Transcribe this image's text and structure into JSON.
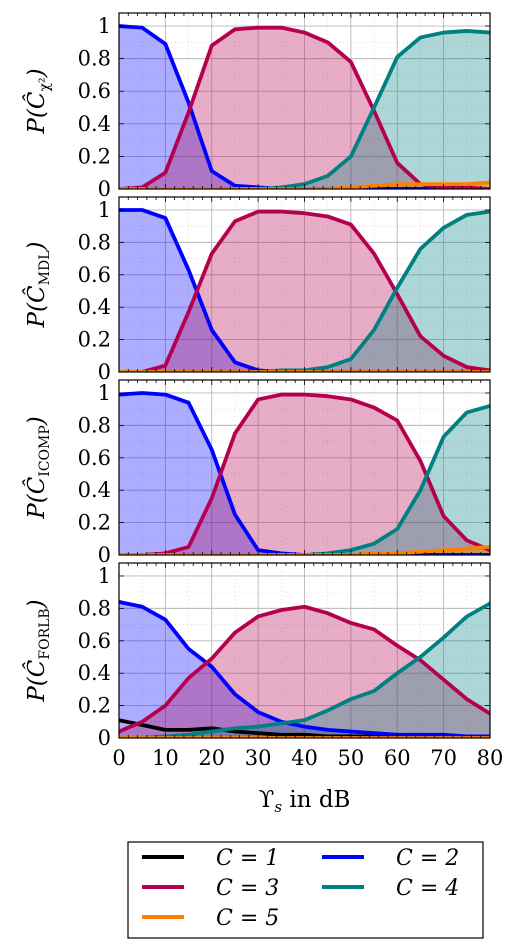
{
  "chart_data": [
    {
      "type": "area",
      "ylabel": "P(Ĉχ²)",
      "ylabel_main": "P(Ĉ",
      "ylabel_sub": "χ²",
      "xlim": [
        0,
        80
      ],
      "ylim": [
        0,
        1.08
      ],
      "grid": true,
      "x": [
        0,
        5,
        10,
        15,
        20,
        25,
        30,
        35,
        40,
        45,
        50,
        55,
        60,
        65,
        70,
        75,
        80
      ],
      "series": [
        {
          "name": "C = 1",
          "values": [
            0,
            0,
            0,
            0,
            0,
            0,
            0,
            0,
            0,
            0,
            0,
            0,
            0,
            0,
            0,
            0,
            0
          ]
        },
        {
          "name": "C = 2",
          "values": [
            1.0,
            0.99,
            0.89,
            0.53,
            0.11,
            0.02,
            0.01,
            0.0,
            0.0,
            0.0,
            0.0,
            0.0,
            0.0,
            0.0,
            0.0,
            0.0,
            0.0
          ]
        },
        {
          "name": "C = 3",
          "values": [
            0.0,
            0.01,
            0.1,
            0.47,
            0.88,
            0.98,
            0.99,
            0.99,
            0.96,
            0.9,
            0.78,
            0.48,
            0.16,
            0.03,
            0.01,
            0.01,
            0.0
          ]
        },
        {
          "name": "C = 4",
          "values": [
            0.0,
            0.0,
            0.0,
            0.0,
            0.0,
            0.0,
            0.0,
            0.01,
            0.03,
            0.08,
            0.2,
            0.5,
            0.81,
            0.93,
            0.96,
            0.97,
            0.96
          ]
        },
        {
          "name": "C = 5",
          "values": [
            0.0,
            0.0,
            0.0,
            0.0,
            0.0,
            0.0,
            0.0,
            0.0,
            0.0,
            0.0,
            0.01,
            0.02,
            0.03,
            0.03,
            0.03,
            0.03,
            0.04
          ]
        }
      ]
    },
    {
      "type": "area",
      "ylabel": "P(ĈMDL)",
      "ylabel_main": "P(Ĉ",
      "ylabel_sub": "MDL",
      "xlim": [
        0,
        80
      ],
      "ylim": [
        0,
        1.08
      ],
      "grid": true,
      "x": [
        0,
        5,
        10,
        15,
        20,
        25,
        30,
        35,
        40,
        45,
        50,
        55,
        60,
        65,
        70,
        75,
        80
      ],
      "series": [
        {
          "name": "C = 1",
          "values": [
            0,
            0,
            0,
            0,
            0,
            0,
            0,
            0,
            0,
            0,
            0,
            0,
            0,
            0,
            0,
            0,
            0
          ]
        },
        {
          "name": "C = 2",
          "values": [
            1.0,
            1.0,
            0.95,
            0.63,
            0.26,
            0.06,
            0.01,
            0.0,
            0.0,
            0.0,
            0.0,
            0.0,
            0.0,
            0.0,
            0.0,
            0.0,
            0.0
          ]
        },
        {
          "name": "C = 3",
          "values": [
            0.0,
            0.0,
            0.04,
            0.37,
            0.73,
            0.93,
            0.99,
            0.99,
            0.98,
            0.96,
            0.91,
            0.73,
            0.48,
            0.22,
            0.1,
            0.03,
            0.01
          ]
        },
        {
          "name": "C = 4",
          "values": [
            0.0,
            0.0,
            0.0,
            0.0,
            0.0,
            0.0,
            0.0,
            0.01,
            0.01,
            0.03,
            0.08,
            0.26,
            0.52,
            0.76,
            0.89,
            0.97,
            0.99
          ]
        },
        {
          "name": "C = 5",
          "values": [
            0,
            0,
            0,
            0,
            0,
            0,
            0,
            0,
            0,
            0,
            0,
            0,
            0,
            0,
            0,
            0,
            0
          ]
        }
      ]
    },
    {
      "type": "area",
      "ylabel": "P(ĈICOMP)",
      "ylabel_main": "P(Ĉ",
      "ylabel_sub": "ICOMP",
      "xlim": [
        0,
        80
      ],
      "ylim": [
        0,
        1.08
      ],
      "grid": true,
      "x": [
        0,
        5,
        10,
        15,
        20,
        25,
        30,
        35,
        40,
        45,
        50,
        55,
        60,
        65,
        70,
        75,
        80
      ],
      "series": [
        {
          "name": "C = 1",
          "values": [
            0,
            0,
            0,
            0,
            0,
            0,
            0,
            0,
            0,
            0,
            0,
            0,
            0,
            0,
            0,
            0,
            0
          ]
        },
        {
          "name": "C = 2",
          "values": [
            0.99,
            1.0,
            0.99,
            0.94,
            0.65,
            0.25,
            0.03,
            0.01,
            0.0,
            0.0,
            0.0,
            0.0,
            0.0,
            0.0,
            0.0,
            0.0,
            0.0
          ]
        },
        {
          "name": "C = 3",
          "values": [
            0.0,
            0.0,
            0.01,
            0.05,
            0.35,
            0.75,
            0.96,
            0.99,
            0.99,
            0.98,
            0.96,
            0.91,
            0.83,
            0.58,
            0.24,
            0.09,
            0.03
          ]
        },
        {
          "name": "C = 4",
          "values": [
            0.0,
            0.0,
            0.0,
            0.0,
            0.0,
            0.0,
            0.0,
            0.0,
            0.0,
            0.01,
            0.03,
            0.07,
            0.16,
            0.4,
            0.73,
            0.88,
            0.92
          ]
        },
        {
          "name": "C = 5",
          "values": [
            0.0,
            0.0,
            0.0,
            0.0,
            0.0,
            0.0,
            0.0,
            0.0,
            0.0,
            0.0,
            0.0,
            0.01,
            0.01,
            0.02,
            0.03,
            0.04,
            0.05
          ]
        }
      ]
    },
    {
      "type": "area",
      "ylabel": "P(ĈFORLB)",
      "ylabel_main": "P(Ĉ",
      "ylabel_sub": "FORLB",
      "xlabel": "ϒs in dB",
      "xlabel_main": "ϒ",
      "xlabel_sub": "s",
      "xlabel_rest": " in dB",
      "xlim": [
        0,
        80
      ],
      "ylim": [
        0,
        1.08
      ],
      "grid": true,
      "x": [
        0,
        5,
        10,
        15,
        20,
        25,
        30,
        35,
        40,
        45,
        50,
        55,
        60,
        65,
        70,
        75,
        80
      ],
      "series": [
        {
          "name": "C = 1",
          "values": [
            0.11,
            0.08,
            0.05,
            0.05,
            0.06,
            0.04,
            0.03,
            0.02,
            0.02,
            0.01,
            0.01,
            0.01,
            0.01,
            0.01,
            0.01,
            0.01,
            0.01
          ]
        },
        {
          "name": "C = 2",
          "values": [
            0.84,
            0.81,
            0.73,
            0.55,
            0.44,
            0.27,
            0.16,
            0.1,
            0.07,
            0.05,
            0.04,
            0.03,
            0.02,
            0.02,
            0.02,
            0.01,
            0.01
          ]
        },
        {
          "name": "C = 3",
          "values": [
            0.04,
            0.1,
            0.2,
            0.37,
            0.49,
            0.65,
            0.75,
            0.79,
            0.81,
            0.77,
            0.71,
            0.67,
            0.57,
            0.48,
            0.36,
            0.24,
            0.15
          ]
        },
        {
          "name": "C = 4",
          "values": [
            0.0,
            0.0,
            0.01,
            0.02,
            0.04,
            0.06,
            0.07,
            0.09,
            0.11,
            0.17,
            0.24,
            0.29,
            0.4,
            0.5,
            0.62,
            0.75,
            0.83
          ]
        },
        {
          "name": "C = 5",
          "values": [
            0.0,
            0.0,
            0.0,
            0.0,
            0.0,
            0.0,
            0.0,
            0.0,
            0.0,
            0.0,
            0.0,
            0.0,
            0.0,
            0.0,
            0.0,
            0.0,
            0.0
          ]
        }
      ]
    }
  ],
  "axes": {
    "x_ticks": [
      0,
      10,
      20,
      30,
      40,
      50,
      60,
      70,
      80
    ],
    "x_tick_labels": [
      "0",
      "10",
      "20",
      "30",
      "40",
      "50",
      "60",
      "70",
      "80"
    ],
    "y_ticks": [
      0,
      0.2,
      0.4,
      0.6,
      0.8,
      1
    ],
    "y_tick_labels": [
      "0",
      "0.2",
      "0.4",
      "0.6",
      "0.8",
      "1"
    ]
  },
  "legend": {
    "placement": "bottom-center",
    "entries": [
      {
        "label": "C = 1",
        "color": "#000000"
      },
      {
        "label": "C = 2",
        "color": "#0000ff"
      },
      {
        "label": "C = 3",
        "color": "#b5004f"
      },
      {
        "label": "C = 4",
        "color": "#008080"
      },
      {
        "label": "C = 5",
        "color": "#ff8000"
      }
    ]
  },
  "colors": {
    "C1": "#000000",
    "C2": "#0000ff",
    "C3": "#b5004f",
    "C4": "#008080",
    "C5": "#ff8000",
    "grid_major": "#b8b8b8",
    "grid_minor": "#d8d8d8"
  }
}
